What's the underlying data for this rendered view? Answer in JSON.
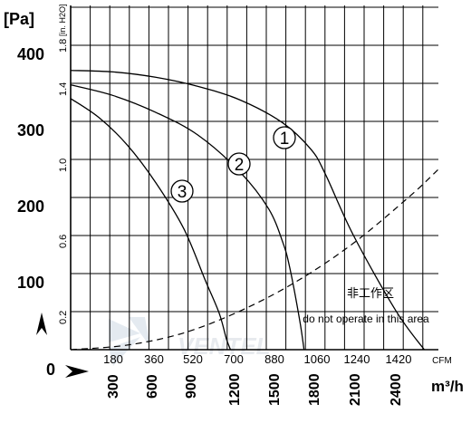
{
  "chart_data": {
    "type": "line",
    "title": "",
    "unit_pa": "[Pa]",
    "unit_inh2o": "[in. H2O]",
    "y_pa_ticks": [
      0,
      100,
      200,
      300,
      400
    ],
    "y_pa_range": [
      0,
      400
    ],
    "y_inh2o_ticks": [
      "0.2",
      "0.6",
      "1.0",
      "1.4",
      "1.8"
    ],
    "x_m3h_ticks": [
      "300",
      "600",
      "900",
      "1200",
      "1500",
      "1800",
      "2100",
      "2400"
    ],
    "x_m3h_values": [
      300,
      600,
      900,
      1200,
      1500,
      1800,
      2100,
      2400
    ],
    "x_m3h_range": [
      0,
      2600
    ],
    "x_cfm_ticks": [
      "180",
      "360",
      "520",
      "700",
      "880",
      "1060",
      "1240",
      "1420"
    ],
    "x_cfm_unit": "CFM",
    "x_m3h_unit": "m³/h",
    "grid": true,
    "series": [
      {
        "name": "1",
        "x": [
          0,
          300,
          600,
          900,
          1200,
          1500,
          1700,
          1800,
          2000,
          2300,
          2500
        ],
        "y": [
          367,
          365,
          358,
          346,
          328,
          298,
          263,
          231,
          150,
          51,
          0
        ]
      },
      {
        "name": "2",
        "x": [
          0,
          300,
          600,
          900,
          1200,
          1400,
          1500,
          1550,
          1620,
          1650
        ],
        "y": [
          348,
          334,
          312,
          282,
          233,
          185,
          141,
          107,
          38,
          0
        ]
      },
      {
        "name": "3",
        "x": [
          0,
          200,
          400,
          600,
          800,
          950,
          1050,
          1100,
          1130
        ],
        "y": [
          330,
          305,
          269,
          220,
          159,
          92,
          48,
          15,
          0
        ]
      }
    ],
    "system_curve": {
      "x": [
        0,
        400,
        800,
        1200,
        1600,
        2000,
        2400,
        2600
      ],
      "y": [
        0,
        6,
        22,
        51,
        90,
        140,
        202,
        237
      ]
    },
    "curve_labels": [
      "1",
      "2",
      "3"
    ],
    "annotation_cn": "非工作区",
    "annotation_en": "do not operate in this area",
    "origin_label": "0"
  }
}
